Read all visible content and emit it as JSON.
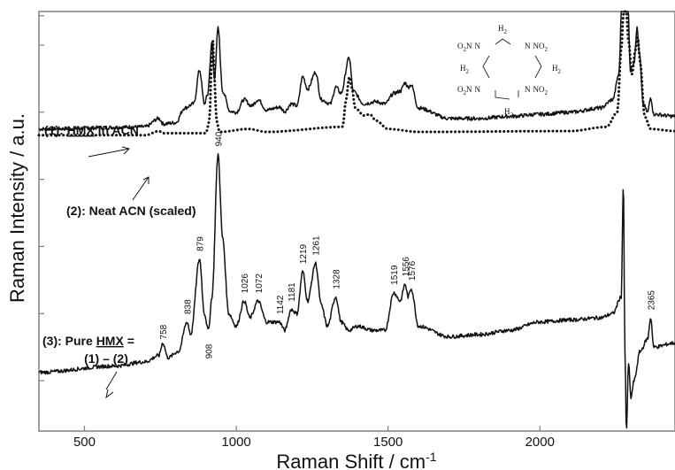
{
  "chart_data": {
    "type": "line",
    "title": "",
    "xlabel": "Raman Shift / cm",
    "xlabel_sup": "-1",
    "ylabel": "Raman Intensity / a.u.",
    "xlim": [
      350,
      2445
    ],
    "ylim": [
      0,
      100
    ],
    "x_ticks": [
      500,
      1000,
      1500,
      2000
    ],
    "y_ticks": [
      12,
      28,
      44,
      60,
      76,
      92,
      99
    ],
    "grid": false,
    "legend": "none",
    "series": [
      {
        "name": "(1): HMX in ACN",
        "style": "solid",
        "baseline": 72,
        "points": [
          [
            350,
            0
          ],
          [
            700,
            0.5
          ],
          [
            745,
            2.5
          ],
          [
            760,
            1.2
          ],
          [
            800,
            1.5
          ],
          [
            830,
            5
          ],
          [
            860,
            6
          ],
          [
            879,
            14
          ],
          [
            895,
            6
          ],
          [
            905,
            8
          ],
          [
            920,
            20.5
          ],
          [
            928,
            12
          ],
          [
            940,
            24
          ],
          [
            955,
            9
          ],
          [
            980,
            4.2
          ],
          [
            1000,
            4
          ],
          [
            1026,
            7
          ],
          [
            1050,
            5.5
          ],
          [
            1072,
            7
          ],
          [
            1100,
            4.5
          ],
          [
            1142,
            5.2
          ],
          [
            1160,
            4.2
          ],
          [
            1181,
            6
          ],
          [
            1200,
            5.5
          ],
          [
            1219,
            12.5
          ],
          [
            1235,
            9.5
          ],
          [
            1261,
            13.5
          ],
          [
            1280,
            7
          ],
          [
            1310,
            6
          ],
          [
            1328,
            10
          ],
          [
            1345,
            8.5
          ],
          [
            1372,
            17
          ],
          [
            1385,
            9
          ],
          [
            1420,
            6
          ],
          [
            1460,
            6.5
          ],
          [
            1490,
            6
          ],
          [
            1519,
            8.5
          ],
          [
            1540,
            9
          ],
          [
            1556,
            11
          ],
          [
            1566,
            10
          ],
          [
            1576,
            10.5
          ],
          [
            1600,
            5
          ],
          [
            1700,
            2.5
          ],
          [
            1800,
            2.5
          ],
          [
            1900,
            3
          ],
          [
            2000,
            3.5
          ],
          [
            2100,
            4
          ],
          [
            2200,
            5
          ],
          [
            2240,
            7
          ],
          [
            2260,
            13
          ],
          [
            2270,
            30
          ],
          [
            2280,
            38
          ],
          [
            2290,
            30
          ],
          [
            2298,
            14
          ],
          [
            2310,
            16
          ],
          [
            2320,
            24
          ],
          [
            2328,
            18
          ],
          [
            2340,
            6
          ],
          [
            2355,
            4
          ],
          [
            2365,
            7.5
          ],
          [
            2375,
            3.5
          ],
          [
            2445,
            3
          ]
        ]
      },
      {
        "name": "(2): Neat ACN (scaled)",
        "style": "dotted",
        "baseline": 71,
        "points": [
          [
            350,
            -0.5
          ],
          [
            700,
            -0.5
          ],
          [
            745,
            0.5
          ],
          [
            760,
            0
          ],
          [
            900,
            0
          ],
          [
            912,
            3
          ],
          [
            918,
            16
          ],
          [
            923,
            22
          ],
          [
            928,
            13
          ],
          [
            935,
            3
          ],
          [
            945,
            0.3
          ],
          [
            1040,
            1
          ],
          [
            1100,
            0.3
          ],
          [
            1350,
            1.5
          ],
          [
            1362,
            8
          ],
          [
            1372,
            13.5
          ],
          [
            1380,
            11
          ],
          [
            1392,
            6
          ],
          [
            1420,
            4.2
          ],
          [
            1440,
            4.5
          ],
          [
            1460,
            3
          ],
          [
            1500,
            1
          ],
          [
            1600,
            0.3
          ],
          [
            2100,
            0.5
          ],
          [
            2220,
            1.5
          ],
          [
            2255,
            5
          ],
          [
            2268,
            20
          ],
          [
            2280,
            38
          ],
          [
            2292,
            22
          ],
          [
            2303,
            14
          ],
          [
            2315,
            20
          ],
          [
            2322,
            23
          ],
          [
            2330,
            17
          ],
          [
            2345,
            4
          ],
          [
            2365,
            1
          ],
          [
            2445,
            0.5
          ]
        ]
      },
      {
        "name": "(3): Pure HMX = (1) – (2)",
        "style": "solid",
        "baseline": 14,
        "points": [
          [
            350,
            0
          ],
          [
            600,
            1.5
          ],
          [
            700,
            2.5
          ],
          [
            745,
            4
          ],
          [
            758,
            7
          ],
          [
            775,
            3.5
          ],
          [
            810,
            5
          ],
          [
            838,
            12
          ],
          [
            850,
            9
          ],
          [
            879,
            27
          ],
          [
            895,
            14
          ],
          [
            908,
            10
          ],
          [
            920,
            18
          ],
          [
            940,
            52
          ],
          [
            955,
            32
          ],
          [
            975,
            14
          ],
          [
            1000,
            11
          ],
          [
            1026,
            17
          ],
          [
            1045,
            13
          ],
          [
            1072,
            17
          ],
          [
            1100,
            12
          ],
          [
            1142,
            12
          ],
          [
            1160,
            10
          ],
          [
            1181,
            15
          ],
          [
            1200,
            14
          ],
          [
            1219,
            24
          ],
          [
            1235,
            17
          ],
          [
            1261,
            26
          ],
          [
            1280,
            16
          ],
          [
            1300,
            11
          ],
          [
            1328,
            18
          ],
          [
            1345,
            12
          ],
          [
            1370,
            10
          ],
          [
            1400,
            11
          ],
          [
            1450,
            10
          ],
          [
            1490,
            10
          ],
          [
            1519,
            19
          ],
          [
            1540,
            17
          ],
          [
            1556,
            21
          ],
          [
            1566,
            18
          ],
          [
            1576,
            20
          ],
          [
            1600,
            11
          ],
          [
            1700,
            8.5
          ],
          [
            1800,
            9
          ],
          [
            1900,
            10
          ],
          [
            2000,
            12
          ],
          [
            2100,
            12.5
          ],
          [
            2200,
            13
          ],
          [
            2240,
            14
          ],
          [
            2268,
            18
          ],
          [
            2275,
            45
          ],
          [
            2280,
            5
          ],
          [
            2285,
            -14
          ],
          [
            2292,
            2
          ],
          [
            2300,
            -6
          ],
          [
            2310,
            -2
          ],
          [
            2330,
            5
          ],
          [
            2355,
            8
          ],
          [
            2365,
            13
          ],
          [
            2375,
            6
          ],
          [
            2445,
            7
          ]
        ]
      }
    ]
  },
  "annotations": {
    "label1_prefix": "(1): ",
    "label1_key": "HMX",
    "label1_suffix": " in ACN",
    "label2": "(2): Neat ACN (scaled)",
    "label3_line1_prefix": "(3):  Pure ",
    "label3_line1_key": "HMX",
    "label3_line1_suffix": " =",
    "label3_line2": "(1) – (2)"
  },
  "peak_labels": [
    "758",
    "838",
    "879",
    "908",
    "940",
    "1026",
    "1072",
    "1142",
    "1181",
    "1219",
    "1261",
    "1328",
    "1519",
    "1556",
    "1576",
    "2365"
  ],
  "peak_label_y": [
    7,
    13,
    28,
    8,
    53,
    18,
    18,
    13,
    16,
    25,
    27,
    19,
    20,
    22,
    21,
    14
  ],
  "peak_label_below": [
    false,
    false,
    false,
    true,
    false,
    false,
    false,
    false,
    false,
    false,
    false,
    false,
    false,
    false,
    false,
    false
  ],
  "molecule": {
    "ch2": "H",
    "two": "2",
    "no2": "NO",
    "o2n": "O",
    "n": "N"
  },
  "colors": {
    "line": "#111111",
    "axis": "#7f7f7f"
  }
}
